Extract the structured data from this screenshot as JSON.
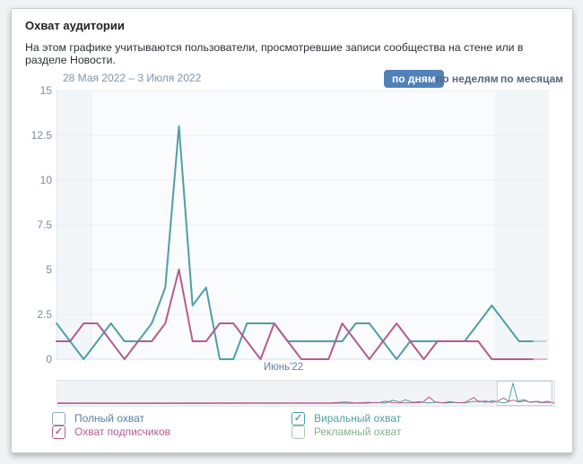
{
  "card": {
    "title": "Охват аудитории",
    "description": "На этом графике учитываются пользователи, просмотревшие записи сообщества на стене или в разделе Новости."
  },
  "toolbar": {
    "date_range": "28 Мая 2022 – 3 Июля 2022",
    "tabs": [
      {
        "name": "tab-by-days",
        "label": "по дням",
        "active": true
      },
      {
        "name": "tab-by-weeks",
        "label": "по неделям",
        "active": false
      },
      {
        "name": "tab-by-months",
        "label": "по месяцам",
        "active": false
      }
    ]
  },
  "chart_data": {
    "type": "line",
    "x_range": "28 Мая 2022 – 3 Июля 2022",
    "x_unit": "day",
    "x_month_label": "Июнь'22",
    "ylim": [
      0,
      15
    ],
    "yticks": [
      "0",
      "2.5",
      "5",
      "7.5",
      "10",
      "12.5",
      "15"
    ],
    "grid": true,
    "series": [
      {
        "name": "Виральный охват",
        "color": "#4f9fa6",
        "values": [
          2,
          1,
          0,
          1,
          2,
          1,
          1,
          2,
          4,
          13,
          3,
          4,
          0,
          0,
          2,
          2,
          2,
          1,
          1,
          1,
          1,
          1,
          2,
          2,
          1,
          0,
          1,
          1,
          1,
          1,
          1,
          2,
          3,
          2,
          1,
          1,
          1
        ]
      },
      {
        "name": "Охват подписчиков",
        "color": "#b25d8e",
        "values": [
          1,
          1,
          2,
          2,
          1,
          0,
          1,
          1,
          2,
          5,
          1,
          1,
          2,
          2,
          1,
          0,
          2,
          1,
          0,
          0,
          0,
          2,
          1,
          0,
          1,
          2,
          1,
          0,
          1,
          1,
          1,
          1,
          0,
          0,
          0,
          0,
          0
        ]
      }
    ]
  },
  "minimap": {
    "selection": [
      0.885,
      0.995
    ],
    "series": [
      {
        "name": "Виральный охват",
        "color": "#4f9fa6",
        "points": [
          [
            0,
            0.02
          ],
          [
            0.25,
            0.02
          ],
          [
            0.45,
            0.03
          ],
          [
            0.55,
            0.03
          ],
          [
            0.6,
            0.04
          ],
          [
            0.62,
            0.03
          ],
          [
            0.64,
            0.07
          ],
          [
            0.66,
            0.04
          ],
          [
            0.675,
            0.17
          ],
          [
            0.69,
            0.09
          ],
          [
            0.7,
            0.19
          ],
          [
            0.715,
            0.08
          ],
          [
            0.73,
            0.11
          ],
          [
            0.745,
            0.05
          ],
          [
            0.765,
            0.08
          ],
          [
            0.78,
            0.04
          ],
          [
            0.8,
            0.07
          ],
          [
            0.82,
            0.05
          ],
          [
            0.835,
            0.11
          ],
          [
            0.85,
            0.13
          ],
          [
            0.862,
            0.07
          ],
          [
            0.875,
            0.15
          ],
          [
            0.89,
            0.08
          ],
          [
            0.9,
            0.05
          ],
          [
            0.908,
            0.12
          ],
          [
            0.917,
            0.97
          ],
          [
            0.926,
            0.14
          ],
          [
            0.94,
            0.2
          ],
          [
            0.95,
            0.08
          ],
          [
            0.962,
            0.12
          ],
          [
            0.973,
            0.05
          ],
          [
            0.985,
            0.13
          ],
          [
            1,
            0.05
          ]
        ]
      },
      {
        "name": "Охват подписчиков",
        "color": "#b25d8e",
        "points": [
          [
            0,
            0.05
          ],
          [
            0.15,
            0.045
          ],
          [
            0.3,
            0.05
          ],
          [
            0.45,
            0.05
          ],
          [
            0.55,
            0.055
          ],
          [
            0.58,
            0.09
          ],
          [
            0.6,
            0.05
          ],
          [
            0.625,
            0.08
          ],
          [
            0.645,
            0.05
          ],
          [
            0.66,
            0.13
          ],
          [
            0.675,
            0.06
          ],
          [
            0.7,
            0.05
          ],
          [
            0.72,
            0.06
          ],
          [
            0.735,
            0.08
          ],
          [
            0.748,
            0.32
          ],
          [
            0.76,
            0.09
          ],
          [
            0.775,
            0.06
          ],
          [
            0.79,
            0.11
          ],
          [
            0.805,
            0.06
          ],
          [
            0.82,
            0.07
          ],
          [
            0.838,
            0.3
          ],
          [
            0.848,
            0.09
          ],
          [
            0.862,
            0.14
          ],
          [
            0.872,
            0.07
          ],
          [
            0.885,
            0.12
          ],
          [
            0.898,
            0.28
          ],
          [
            0.908,
            0.12
          ],
          [
            0.918,
            0.18
          ],
          [
            0.928,
            0.09
          ],
          [
            0.942,
            0.14
          ],
          [
            0.953,
            0.07
          ],
          [
            0.966,
            0.12
          ],
          [
            0.978,
            0.06
          ],
          [
            0.99,
            0.08
          ],
          [
            1,
            0.05
          ]
        ]
      }
    ]
  },
  "legend": {
    "items": [
      {
        "name": "legend-item-full-reach",
        "label": "Полный охват",
        "color": "#5a7ea7",
        "box_border": "#92a9c4",
        "checked": false
      },
      {
        "name": "legend-item-subscribers-reach",
        "label": "Охват подписчиков",
        "color": "#b25d8e",
        "box_border": "#b25d8e",
        "checked": true
      },
      {
        "name": "legend-item-viral-reach",
        "label": "Виральный охват",
        "color": "#4f9fa6",
        "box_border": "#4f9fa6",
        "checked": true
      },
      {
        "name": "legend-item-ad-reach",
        "label": "Рекламный охват",
        "color": "#83b28a",
        "box_border": "#aac9ae",
        "checked": false
      }
    ]
  }
}
